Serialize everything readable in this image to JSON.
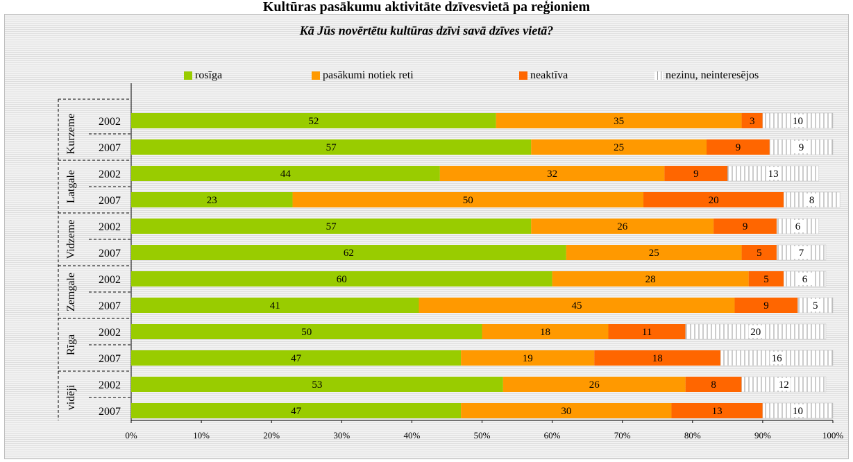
{
  "header": {
    "title": "Kultūras pasākumu aktivitāte dzīvesvietā pa reģioniem"
  },
  "chart_data": {
    "type": "bar",
    "orientation": "horizontal",
    "stacked": "percent",
    "title": "Kā Jūs novērtētu kultūras dzīvi savā dzīves vietā?",
    "groups": [
      "Kurzeme",
      "Latgale",
      "Vidzeme",
      "Zemgale",
      "Rīga",
      "vidēji"
    ],
    "years": [
      "2002",
      "2007"
    ],
    "series": [
      {
        "name": "rosīga",
        "color": "#99cc00",
        "values": [
          52,
          57,
          44,
          23,
          57,
          62,
          60,
          41,
          50,
          47,
          53,
          47
        ]
      },
      {
        "name": "pasākumi notiek reti",
        "color": "#ff9900",
        "values": [
          35,
          25,
          32,
          50,
          26,
          25,
          28,
          45,
          18,
          19,
          26,
          30
        ]
      },
      {
        "name": "neaktīva",
        "color": "#ff6600",
        "values": [
          3,
          9,
          9,
          20,
          9,
          5,
          5,
          9,
          11,
          18,
          8,
          13
        ]
      },
      {
        "name": "nezinu, neinteresējos",
        "color": "#ffffff",
        "hatched": true,
        "values": [
          10,
          9,
          13,
          8,
          6,
          7,
          6,
          5,
          20,
          16,
          12,
          10
        ]
      }
    ],
    "xlim": [
      0,
      100
    ],
    "xticks": [
      "0%",
      "10%",
      "20%",
      "30%",
      "40%",
      "50%",
      "60%",
      "70%",
      "80%",
      "90%",
      "100%"
    ],
    "legend_position": "top",
    "grid": false
  }
}
